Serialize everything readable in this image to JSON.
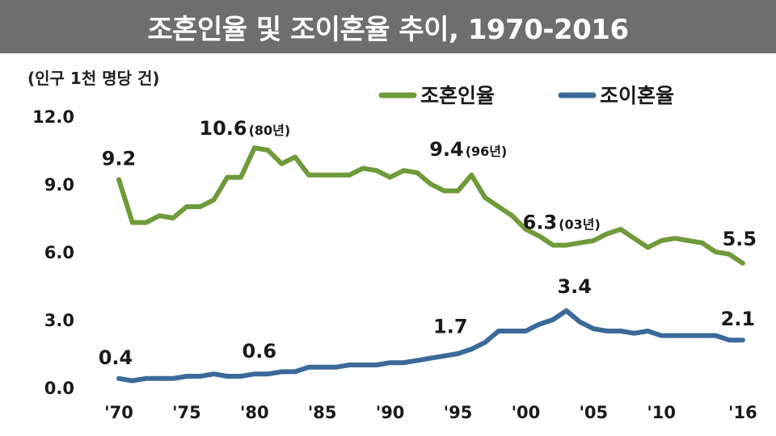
{
  "chart_data": {
    "type": "line",
    "title": "조혼인율 및 조이혼율 추이, 1970-2016",
    "unit_label": "(인구 1천 명당 건)",
    "ylim": [
      0,
      12
    ],
    "y_ticks": [
      "0.0",
      "3.0",
      "6.0",
      "9.0",
      "12.0"
    ],
    "x_tick_labels": [
      "'70",
      "'75",
      "'80",
      "'85",
      "'90",
      "'95",
      "'00",
      "'05",
      "'10",
      "'16"
    ],
    "x_tick_years": [
      1970,
      1975,
      1980,
      1985,
      1990,
      1995,
      2000,
      2005,
      2010,
      2016
    ],
    "legend": [
      "조혼인율",
      "조이혼율"
    ],
    "colors": {
      "marriage": "#6f9a3a",
      "divorce": "#3b6a9a"
    },
    "series": [
      {
        "name": "조혼인율",
        "x": [
          1970,
          1971,
          1972,
          1973,
          1974,
          1975,
          1976,
          1977,
          1978,
          1979,
          1980,
          1981,
          1982,
          1983,
          1984,
          1985,
          1986,
          1987,
          1988,
          1989,
          1990,
          1991,
          1992,
          1993,
          1994,
          1995,
          1996,
          1997,
          1998,
          1999,
          2000,
          2001,
          2002,
          2003,
          2004,
          2005,
          2006,
          2007,
          2008,
          2009,
          2010,
          2011,
          2012,
          2013,
          2014,
          2015,
          2016
        ],
        "values": [
          9.2,
          7.3,
          7.3,
          7.6,
          7.5,
          8.0,
          8.0,
          8.3,
          9.3,
          9.3,
          10.6,
          10.5,
          9.9,
          10.2,
          9.4,
          9.4,
          9.4,
          9.4,
          9.7,
          9.6,
          9.3,
          9.6,
          9.5,
          9.0,
          8.7,
          8.7,
          9.4,
          8.4,
          8.0,
          7.6,
          7.0,
          6.7,
          6.3,
          6.3,
          6.4,
          6.5,
          6.8,
          7.0,
          6.6,
          6.2,
          6.5,
          6.6,
          6.5,
          6.4,
          6.0,
          5.9,
          5.5
        ]
      },
      {
        "name": "조이혼율",
        "x": [
          1970,
          1971,
          1972,
          1973,
          1974,
          1975,
          1976,
          1977,
          1978,
          1979,
          1980,
          1981,
          1982,
          1983,
          1984,
          1985,
          1986,
          1987,
          1988,
          1989,
          1990,
          1991,
          1992,
          1993,
          1994,
          1995,
          1996,
          1997,
          1998,
          1999,
          2000,
          2001,
          2002,
          2003,
          2004,
          2005,
          2006,
          2007,
          2008,
          2009,
          2010,
          2011,
          2012,
          2013,
          2014,
          2015,
          2016
        ],
        "values": [
          0.4,
          0.3,
          0.4,
          0.4,
          0.4,
          0.5,
          0.5,
          0.6,
          0.5,
          0.5,
          0.6,
          0.6,
          0.7,
          0.7,
          0.9,
          0.9,
          0.9,
          1.0,
          1.0,
          1.0,
          1.1,
          1.1,
          1.2,
          1.3,
          1.4,
          1.5,
          1.7,
          2.0,
          2.5,
          2.5,
          2.5,
          2.8,
          3.0,
          3.4,
          2.9,
          2.6,
          2.5,
          2.5,
          2.4,
          2.5,
          2.3,
          2.3,
          2.3,
          2.3,
          2.3,
          2.1,
          2.1
        ]
      }
    ],
    "annotations": [
      {
        "series": 0,
        "year": 1970,
        "value": "9.2",
        "note": ""
      },
      {
        "series": 0,
        "year": 1980,
        "value": "10.6",
        "note": "(80년)"
      },
      {
        "series": 0,
        "year": 1996,
        "value": "9.4",
        "note": "(96년)"
      },
      {
        "series": 0,
        "year": 2003,
        "value": "6.3",
        "note": "(03년)"
      },
      {
        "series": 0,
        "year": 2016,
        "value": "5.5",
        "note": ""
      },
      {
        "series": 1,
        "year": 1970,
        "value": "0.4",
        "note": ""
      },
      {
        "series": 1,
        "year": 1980,
        "value": "0.6",
        "note": ""
      },
      {
        "series": 1,
        "year": 1996,
        "value": "1.7",
        "note": ""
      },
      {
        "series": 1,
        "year": 2003,
        "value": "3.4",
        "note": ""
      },
      {
        "series": 1,
        "year": 2016,
        "value": "2.1",
        "note": ""
      }
    ]
  }
}
